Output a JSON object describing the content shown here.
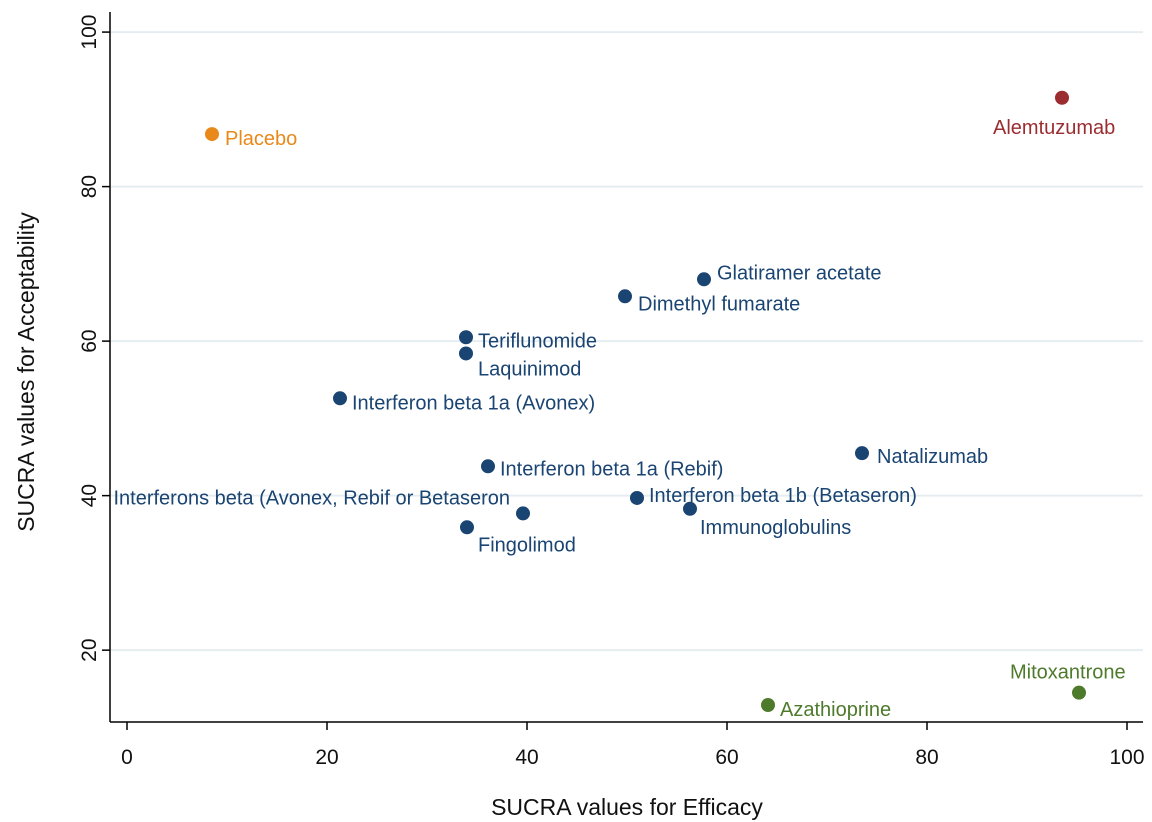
{
  "chart_data": {
    "type": "scatter",
    "x_label": "SUCRA  values  for Efficacy",
    "y_label": "SUCRA  values  for Acceptability",
    "xlim": [
      -1.7,
      101.6
    ],
    "ylim": [
      10.7,
      102.6
    ],
    "xticks": [
      0,
      20,
      40,
      60,
      80,
      100
    ],
    "yticks": [
      20,
      40,
      60,
      80,
      100
    ],
    "grid": true,
    "points": [
      {
        "label": "Placebo",
        "x": 8.5,
        "y": 86.8,
        "color": "#e8891a"
      },
      {
        "label": "Alemtuzumab",
        "x": 93.5,
        "y": 91.5,
        "color": "#9b2d30"
      },
      {
        "label": "Glatiramer acetate",
        "x": 57.7,
        "y": 68.0,
        "color": "#1a4472"
      },
      {
        "label": "Dimethyl fumarate",
        "x": 49.8,
        "y": 65.8,
        "color": "#1a4472"
      },
      {
        "label": "Teriflunomide",
        "x": 33.9,
        "y": 60.5,
        "color": "#1a4472"
      },
      {
        "label": "Laquinimod",
        "x": 33.9,
        "y": 58.4,
        "color": "#1a4472"
      },
      {
        "label": "Interferon beta 1a (Avonex)",
        "x": 21.3,
        "y": 52.6,
        "color": "#1a4472"
      },
      {
        "label": "Interferon beta 1a (Rebif)",
        "x": 36.1,
        "y": 43.8,
        "color": "#1a4472"
      },
      {
        "label": "Natalizumab",
        "x": 73.5,
        "y": 45.5,
        "color": "#1a4472"
      },
      {
        "label": "Interferons beta (Avonex, Rebif or Betaseron",
        "x": 39.6,
        "y": 37.7,
        "color": "#1a4472"
      },
      {
        "label": "Interferon beta 1b (Betaseron)",
        "x": 51.0,
        "y": 39.7,
        "color": "#1a4472"
      },
      {
        "label": "Immunoglobulins",
        "x": 56.3,
        "y": 38.3,
        "color": "#1a4472"
      },
      {
        "label": "Fingolimod",
        "x": 34.0,
        "y": 35.9,
        "color": "#1a4472"
      },
      {
        "label": "Azathioprine",
        "x": 64.1,
        "y": 12.9,
        "color": "#4e7a2c"
      },
      {
        "label": "Mitoxantrone",
        "x": 95.2,
        "y": 14.5,
        "color": "#4e7a2c"
      }
    ]
  }
}
